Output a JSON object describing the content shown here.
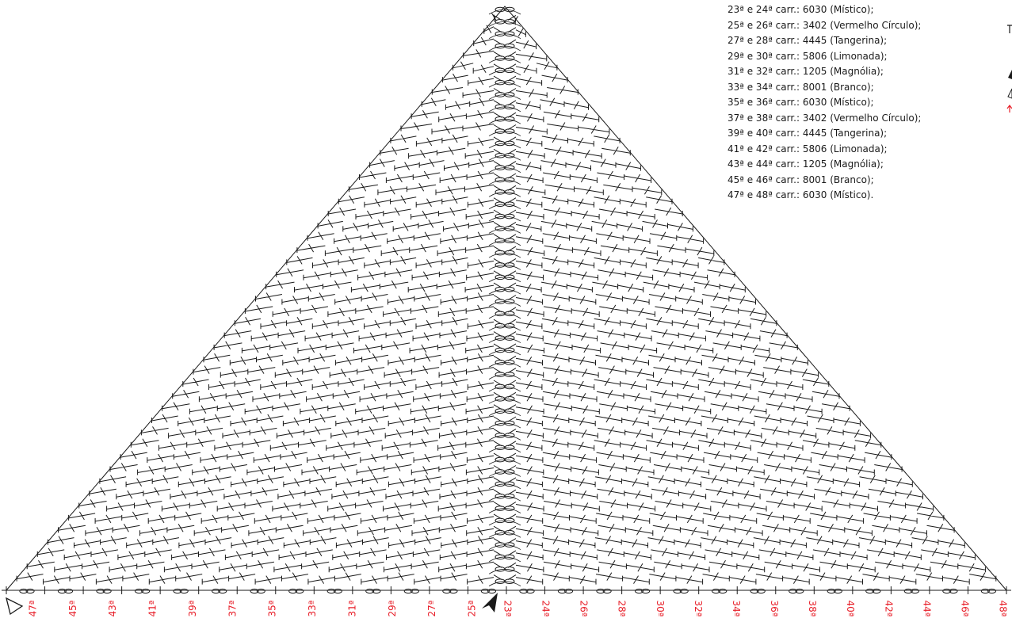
{
  "legend": [
    "23ª e 24ª carr.: 6030 (Místico);",
    "25ª e 26ª carr.: 3402 (Vermelho Círculo);",
    "27ª e 28ª carr.: 4445 (Tangerina);",
    "29ª e 30ª carr.: 5806 (Limonada);",
    "31ª e 32ª carr.: 1205 (Magnólia);",
    "33ª e 34ª carr.: 8001 (Branco);",
    "35ª e 36ª carr.: 6030 (Místico);",
    "37ª e 38ª carr.: 3402 (Vermelho Círculo);",
    "39ª e 40ª carr.: 4445 (Tangerina);",
    "41ª e 42ª carr.: 5806 (Limonada);",
    "43ª e 44ª carr.: 1205 (Magnólia);",
    "45ª e 46ª carr.: 8001 (Branco);",
    "47ª e 48ª carr.: 6030 (Místico)."
  ],
  "row_labels_left": [
    "47ª",
    "45ª",
    "43ª",
    "41ª",
    "39ª",
    "37ª",
    "35ª",
    "33ª",
    "31ª",
    "29ª",
    "27ª",
    "25ª"
  ],
  "row_labels_right": [
    "23ª",
    "24ª",
    "26ª",
    "28ª",
    "30ª",
    "32ª",
    "34ª",
    "36ª",
    "38ª",
    "40ª",
    "42ª",
    "44ª",
    "46ª",
    "48ª"
  ],
  "colors": {
    "stitch": "#1a1a1a",
    "row_label": "#e8202a",
    "background": "#ffffff"
  }
}
